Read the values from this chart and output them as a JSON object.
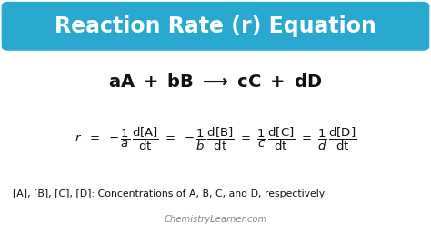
{
  "title": "Reaction Rate (r) Equation",
  "title_bg_color": "#29a8d0",
  "title_text_color": "#ffffff",
  "bg_color": "#ffffff",
  "footnote": "[A], [B], [C], [D]: Concentrations of A, B, C, and D, respectively",
  "watermark": "ChemistryLearner.com",
  "text_color": "#111111",
  "fig_width": 4.74,
  "fig_height": 2.56,
  "dpi": 100
}
